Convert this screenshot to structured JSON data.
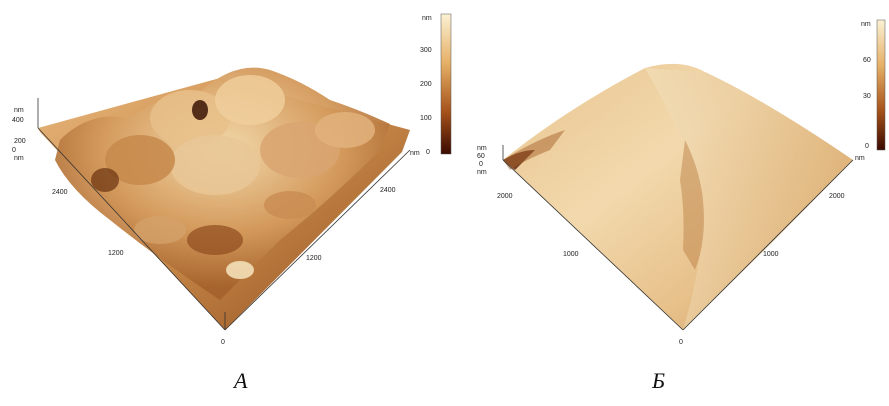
{
  "panels": [
    {
      "caption": "A",
      "axis_unit_y": "nm",
      "axis_unit_x": "nm",
      "z_unit": "nm",
      "z_ticks": [
        "400",
        "200",
        "0"
      ],
      "x_ticks": [
        "0",
        "1200",
        "2400"
      ],
      "y_ticks": [
        "1200",
        "2400"
      ],
      "colorbar_unit": "nm",
      "colorbar_ticks": [
        "300",
        "200",
        "100",
        "0"
      ],
      "corner_label": "0"
    },
    {
      "caption": "Б",
      "axis_unit_y": "nm",
      "axis_unit_x": "nm",
      "z_unit": "nm",
      "z_ticks": [
        "60",
        "0"
      ],
      "x_ticks": [
        "0",
        "1000",
        "2000"
      ],
      "y_ticks": [
        "1000",
        "2000"
      ],
      "colorbar_unit": "nm",
      "colorbar_ticks": [
        "60",
        "30",
        "0"
      ],
      "corner_label": "0"
    }
  ],
  "colors": {
    "surface_light": "#f3dfb8",
    "surface_mid": "#d9a86b",
    "surface_dark": "#7a3f12",
    "colorbar_top": "#fbf1d3",
    "colorbar_bottom": "#3a0a00"
  }
}
